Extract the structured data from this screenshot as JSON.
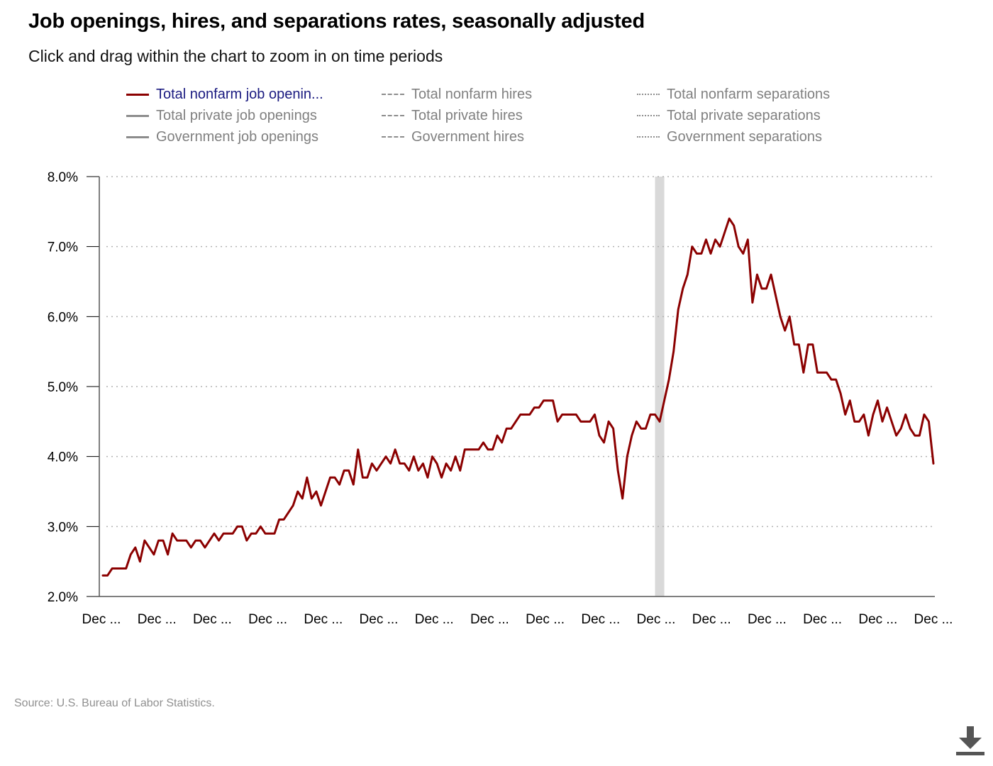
{
  "title": "Job openings, hires, and separations rates, seasonally adjusted",
  "subtitle": "Click and drag within the chart to zoom in on time periods",
  "legend": {
    "items": [
      {
        "label": "Total nonfarm job openin...",
        "style": "solid",
        "color": "#8b0000",
        "active": true
      },
      {
        "label": "Total private job openings",
        "style": "solid",
        "color": "#8c8c8c",
        "active": false
      },
      {
        "label": "Government job openings",
        "style": "solid",
        "color": "#8c8c8c",
        "active": false
      },
      {
        "label": "Total nonfarm hires",
        "style": "dashed",
        "color": "#8c8c8c",
        "active": false
      },
      {
        "label": "Total private hires",
        "style": "dashed",
        "color": "#8c8c8c",
        "active": false
      },
      {
        "label": "Government hires",
        "style": "dashed",
        "color": "#8c8c8c",
        "active": false
      },
      {
        "label": "Total nonfarm separations",
        "style": "dotted",
        "color": "#8c8c8c",
        "active": false
      },
      {
        "label": "Total private separations",
        "style": "dotted",
        "color": "#8c8c8c",
        "active": false
      },
      {
        "label": "Government separations",
        "style": "dotted",
        "color": "#8c8c8c",
        "active": false
      }
    ]
  },
  "source": "Source: U.S. Bureau of Labor Statistics.",
  "download_icon": "download-icon",
  "chart_data": {
    "type": "line",
    "ylim": [
      2.0,
      8.0
    ],
    "y_ticks": [
      "2.0%",
      "3.0%",
      "4.0%",
      "5.0%",
      "6.0%",
      "7.0%",
      "8.0%"
    ],
    "x_tick_labels": [
      "Dec ...",
      "Dec ...",
      "Dec ...",
      "Dec ...",
      "Dec ...",
      "Dec ...",
      "Dec ...",
      "Dec ...",
      "Dec ...",
      "Dec ...",
      "Dec ...",
      "Dec ...",
      "Dec ...",
      "Dec ...",
      "Dec ...",
      "Dec ..."
    ],
    "grid": true,
    "grid_style": "dotted",
    "line_color": "#8b0000",
    "shading_color": "#d9d9d9",
    "recession_shading": {
      "start_index": 119,
      "end_index": 121
    },
    "series": [
      {
        "name": "Total nonfarm job openin...",
        "values": [
          2.3,
          2.3,
          2.4,
          2.4,
          2.4,
          2.4,
          2.6,
          2.7,
          2.5,
          2.8,
          2.7,
          2.6,
          2.8,
          2.8,
          2.6,
          2.9,
          2.8,
          2.8,
          2.8,
          2.7,
          2.8,
          2.8,
          2.7,
          2.8,
          2.9,
          2.8,
          2.9,
          2.9,
          2.9,
          3.0,
          3.0,
          2.8,
          2.9,
          2.9,
          3.0,
          2.9,
          2.9,
          2.9,
          3.1,
          3.1,
          3.2,
          3.3,
          3.5,
          3.4,
          3.7,
          3.4,
          3.5,
          3.3,
          3.5,
          3.7,
          3.7,
          3.6,
          3.8,
          3.8,
          3.6,
          4.1,
          3.7,
          3.7,
          3.9,
          3.8,
          3.9,
          4.0,
          3.9,
          4.1,
          3.9,
          3.9,
          3.8,
          4.0,
          3.8,
          3.9,
          3.7,
          4.0,
          3.9,
          3.7,
          3.9,
          3.8,
          4.0,
          3.8,
          4.1,
          4.1,
          4.1,
          4.1,
          4.2,
          4.1,
          4.1,
          4.3,
          4.2,
          4.4,
          4.4,
          4.5,
          4.6,
          4.6,
          4.6,
          4.7,
          4.7,
          4.8,
          4.8,
          4.8,
          4.5,
          4.6,
          4.6,
          4.6,
          4.6,
          4.5,
          4.5,
          4.5,
          4.6,
          4.3,
          4.2,
          4.5,
          4.4,
          3.8,
          3.4,
          4.0,
          4.3,
          4.5,
          4.4,
          4.4,
          4.6,
          4.6,
          4.5,
          4.8,
          5.1,
          5.5,
          6.1,
          6.4,
          6.6,
          7.0,
          6.9,
          6.9,
          7.1,
          6.9,
          7.1,
          7.0,
          7.2,
          7.4,
          7.3,
          7.0,
          6.9,
          7.1,
          6.2,
          6.6,
          6.4,
          6.4,
          6.6,
          6.3,
          6.0,
          5.8,
          6.0,
          5.6,
          5.6,
          5.2,
          5.6,
          5.6,
          5.2,
          5.2,
          5.2,
          5.1,
          5.1,
          4.9,
          4.6,
          4.8,
          4.5,
          4.5,
          4.6,
          4.3,
          4.6,
          4.8,
          4.5,
          4.7,
          4.5,
          4.3,
          4.4,
          4.6,
          4.4,
          4.3,
          4.3,
          4.6,
          4.5,
          3.9
        ]
      }
    ]
  }
}
